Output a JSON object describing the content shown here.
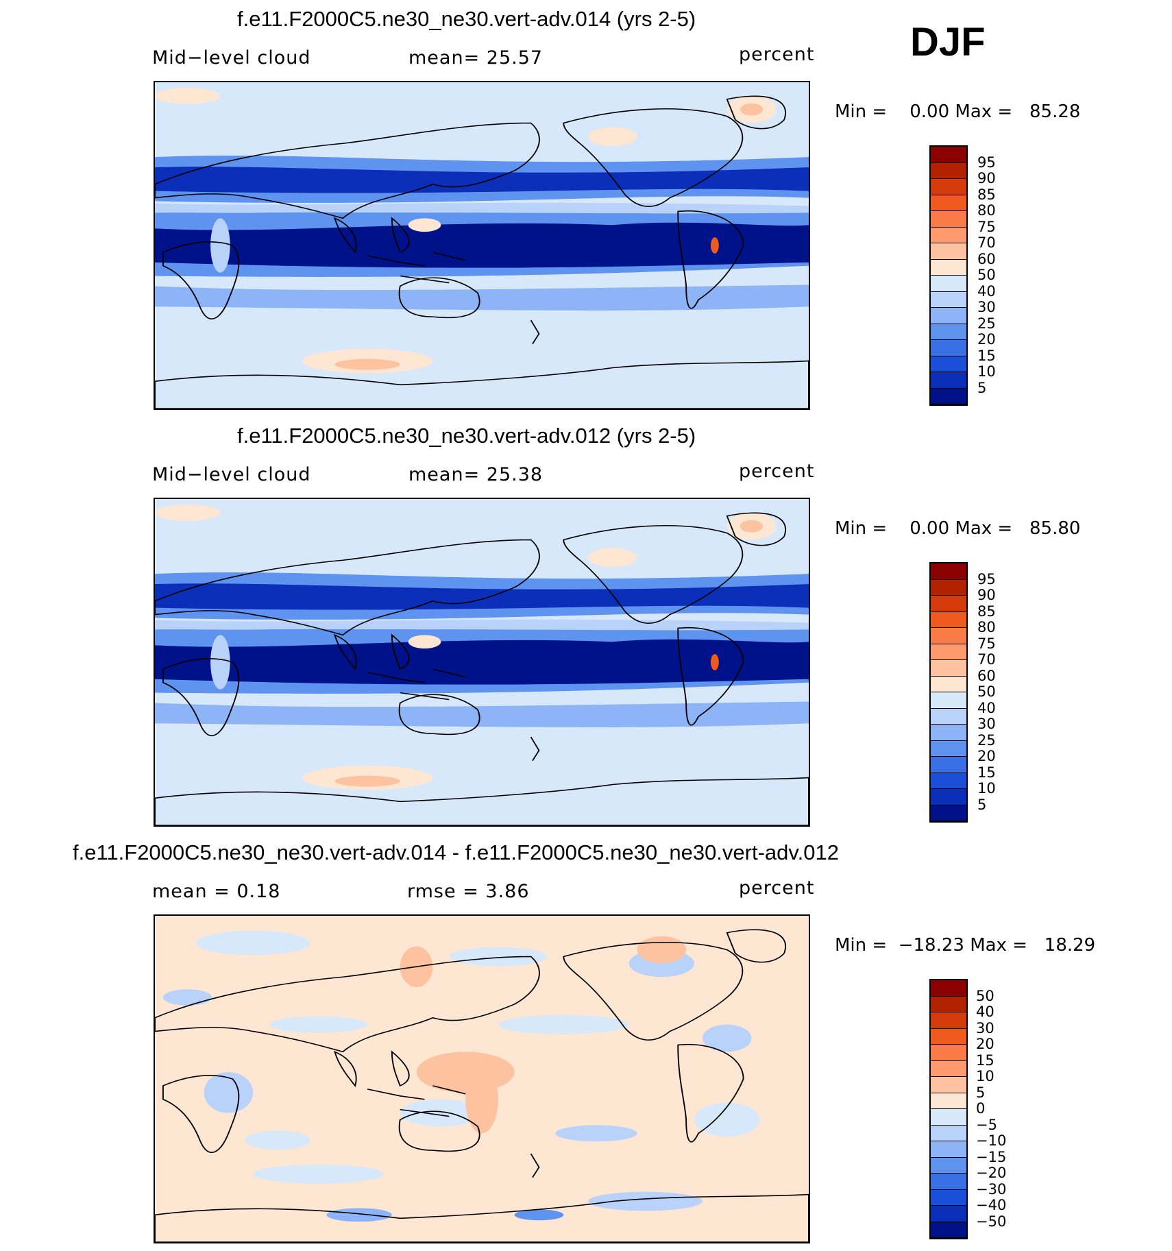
{
  "season": "DJF",
  "panels": [
    {
      "title": "f.e11.F2000C5.ne30_ne30.vert-adv.014 (yrs 2-5)",
      "left_label": "Mid−level cloud",
      "center_label": "mean=   25.57",
      "units": "percent",
      "min_label": "Min =",
      "min_value": "0.00",
      "max_label": "Max =",
      "max_value": "85.28",
      "colorbar_labels": [
        "95",
        "90",
        "85",
        "80",
        "75",
        "70",
        "60",
        "50",
        "40",
        "30",
        "25",
        "20",
        "15",
        "10",
        "5"
      ],
      "colors": [
        "#8b0000",
        "#b22200",
        "#d63a0a",
        "#f05a1e",
        "#fb7a45",
        "#fd9a6e",
        "#fdc3a0",
        "#fde6d2",
        "#d8e8fb",
        "#b8d2fa",
        "#8cb4f6",
        "#5e93ef",
        "#3a70e6",
        "#1c4fd8",
        "#0b2fb8",
        "#00128a"
      ]
    },
    {
      "title": "f.e11.F2000C5.ne30_ne30.vert-adv.012 (yrs 2-5)",
      "left_label": "Mid−level cloud",
      "center_label": "mean=   25.38",
      "units": "percent",
      "min_label": "Min =",
      "min_value": "0.00",
      "max_label": "Max =",
      "max_value": "85.80",
      "colorbar_labels": [
        "95",
        "90",
        "85",
        "80",
        "75",
        "70",
        "60",
        "50",
        "40",
        "30",
        "25",
        "20",
        "15",
        "10",
        "5"
      ],
      "colors": [
        "#8b0000",
        "#b22200",
        "#d63a0a",
        "#f05a1e",
        "#fb7a45",
        "#fd9a6e",
        "#fdc3a0",
        "#fde6d2",
        "#d8e8fb",
        "#b8d2fa",
        "#8cb4f6",
        "#5e93ef",
        "#3a70e6",
        "#1c4fd8",
        "#0b2fb8",
        "#00128a"
      ]
    },
    {
      "title": "f.e11.F2000C5.ne30_ne30.vert-adv.014 - f.e11.F2000C5.ne30_ne30.vert-adv.012",
      "left_label": "mean =     0.18",
      "center_label": "rmse =     3.86",
      "units": "percent",
      "min_label": "Min =",
      "min_value": "−18.23",
      "max_label": "Max =",
      "max_value": "18.29",
      "colorbar_labels": [
        "50",
        "40",
        "30",
        "20",
        "15",
        "10",
        "5",
        "0",
        "−5",
        "−10",
        "−15",
        "−20",
        "−30",
        "−40",
        "−50"
      ],
      "colors": [
        "#8b0000",
        "#b22200",
        "#d63a0a",
        "#f05a1e",
        "#fb7a45",
        "#fd9a6e",
        "#fdc3a0",
        "#fde6d2",
        "#d8e8fb",
        "#b8d2fa",
        "#8cb4f6",
        "#5e93ef",
        "#3a70e6",
        "#1c4fd8",
        "#0b2fb8",
        "#00128a"
      ]
    }
  ]
}
